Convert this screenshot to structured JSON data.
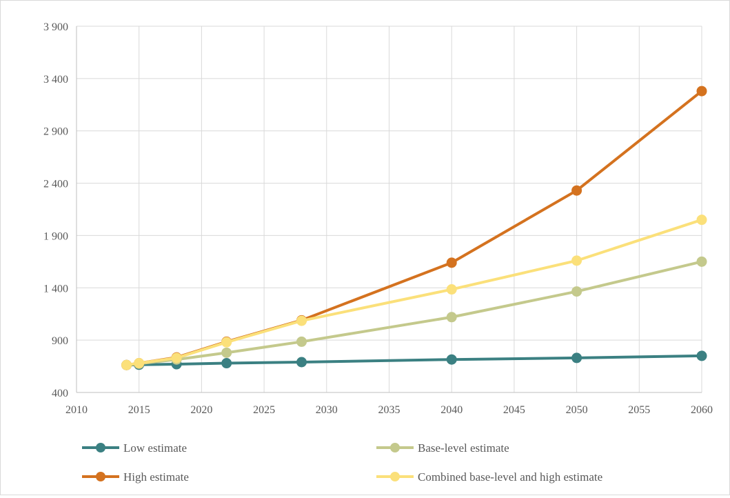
{
  "chart_data": {
    "type": "line",
    "title": "",
    "xlabel": "",
    "ylabel": "",
    "xlim": [
      2010,
      2060
    ],
    "ylim": [
      400,
      3900
    ],
    "x_ticks": [
      "2010",
      "2015",
      "2020",
      "2025",
      "2030",
      "2035",
      "2040",
      "2045",
      "2050",
      "2055",
      "2060"
    ],
    "y_ticks": [
      "400",
      "900",
      "1 400",
      "1 900",
      "2 400",
      "2 900",
      "3 400",
      "3 900"
    ],
    "grid": true,
    "legend_position": "bottom",
    "series": [
      {
        "name": "Low estimate",
        "color": "#3b8082",
        "points": [
          [
            2014,
            662
          ],
          [
            2015,
            665
          ],
          [
            2018,
            670
          ],
          [
            2022,
            680
          ],
          [
            2028,
            690
          ],
          [
            2040,
            715
          ],
          [
            2050,
            730
          ],
          [
            2060,
            750
          ]
        ]
      },
      {
        "name": "Base-level estimate",
        "color": "#c4c98c",
        "points": [
          [
            2014,
            662
          ],
          [
            2015,
            675
          ],
          [
            2018,
            715
          ],
          [
            2022,
            780
          ],
          [
            2028,
            885
          ],
          [
            2040,
            1120
          ],
          [
            2050,
            1365
          ],
          [
            2060,
            1650
          ]
        ]
      },
      {
        "name": "High estimate",
        "color": "#d4721f",
        "points": [
          [
            2014,
            662
          ],
          [
            2015,
            680
          ],
          [
            2018,
            735
          ],
          [
            2022,
            885
          ],
          [
            2028,
            1090
          ],
          [
            2040,
            1640
          ],
          [
            2050,
            2330
          ],
          [
            2060,
            3280
          ]
        ]
      },
      {
        "name": "Combined base-level and high estimate",
        "color": "#fbe07a",
        "points": [
          [
            2014,
            662
          ],
          [
            2015,
            680
          ],
          [
            2018,
            730
          ],
          [
            2022,
            880
          ],
          [
            2028,
            1085
          ],
          [
            2040,
            1385
          ],
          [
            2050,
            1660
          ],
          [
            2060,
            2050
          ]
        ]
      }
    ]
  },
  "legend": [
    {
      "label": "Low estimate",
      "color": "#3b8082"
    },
    {
      "label": "Base-level estimate",
      "color": "#c4c98c"
    },
    {
      "label": "High estimate",
      "color": "#d4721f"
    },
    {
      "label": "Combined base-level and high estimate",
      "color": "#fbe07a"
    }
  ]
}
